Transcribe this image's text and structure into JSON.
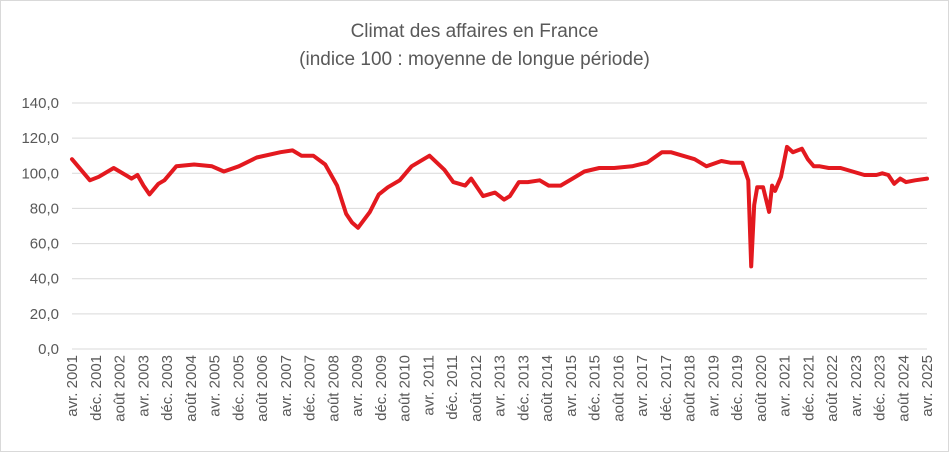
{
  "chart_data": {
    "type": "line",
    "title": "Climat des affaires en France",
    "subtitle": "(indice 100 : moyenne de longue période)",
    "xlabel": "",
    "ylabel": "",
    "ylim": [
      0,
      140
    ],
    "yticks": [
      "0,0",
      "20,0",
      "40,0",
      "60,0",
      "80,0",
      "100,0",
      "120,0",
      "140,0"
    ],
    "x_tick_labels": [
      "avr. 2001",
      "déc. 2001",
      "août 2002",
      "avr. 2003",
      "déc. 2003",
      "août 2004",
      "avr. 2005",
      "déc. 2005",
      "août 2006",
      "avr. 2007",
      "déc. 2007",
      "août 2008",
      "avr. 2009",
      "déc. 2009",
      "août 2010",
      "avr. 2011",
      "déc. 2011",
      "août 2012",
      "avr. 2013",
      "déc. 2013",
      "août 2014",
      "avr. 2015",
      "déc. 2015",
      "août 2016",
      "avr. 2017",
      "déc. 2017",
      "août 2018",
      "avr. 2019",
      "déc. 2019",
      "août 2020",
      "avr. 2021",
      "déc. 2021",
      "août 2022",
      "avr. 2023",
      "déc. 2023",
      "août 2024",
      "avr. 2025"
    ],
    "grid": true,
    "legend": "none",
    "series": [
      {
        "color": "#e3191f",
        "x": [
          "2001-04",
          "2001-10",
          "2002-01",
          "2002-06",
          "2002-12",
          "2003-02",
          "2003-04",
          "2003-06",
          "2003-09",
          "2003-11",
          "2004-03",
          "2004-09",
          "2005-03",
          "2005-07",
          "2005-12",
          "2006-06",
          "2007-02",
          "2007-06",
          "2007-09",
          "2008-01",
          "2008-05",
          "2008-09",
          "2008-12",
          "2009-02",
          "2009-04",
          "2009-08",
          "2009-11",
          "2010-02",
          "2010-06",
          "2010-10",
          "2011-04",
          "2011-09",
          "2011-12",
          "2012-04",
          "2012-06",
          "2012-10",
          "2013-02",
          "2013-05",
          "2013-07",
          "2013-10",
          "2014-01",
          "2014-05",
          "2014-08",
          "2014-12",
          "2015-04",
          "2015-08",
          "2016-01",
          "2016-06",
          "2016-12",
          "2017-05",
          "2017-10",
          "2018-01",
          "2018-05",
          "2018-09",
          "2019-01",
          "2019-06",
          "2019-09",
          "2020-01",
          "2020-03",
          "2020-04",
          "2020-05",
          "2020-06",
          "2020-08",
          "2020-10",
          "2020-11",
          "2020-12",
          "2021-02",
          "2021-04",
          "2021-06",
          "2021-09",
          "2021-11",
          "2022-01",
          "2022-03",
          "2022-06",
          "2022-10",
          "2023-02",
          "2023-06",
          "2023-10",
          "2023-12",
          "2024-02",
          "2024-04",
          "2024-06",
          "2024-08",
          "2024-11",
          "2025-03"
        ],
        "y": [
          108,
          96,
          98,
          103,
          97,
          99,
          93,
          88,
          94,
          96,
          104,
          105,
          104,
          101,
          104,
          109,
          112,
          113,
          110,
          110,
          105,
          93,
          77,
          72,
          69,
          78,
          88,
          92,
          96,
          104,
          110,
          102,
          95,
          93,
          97,
          87,
          89,
          85,
          87,
          95,
          95,
          96,
          93,
          93,
          97,
          101,
          103,
          103,
          104,
          106,
          112,
          112,
          110,
          108,
          104,
          107,
          106,
          106,
          96,
          47,
          82,
          92,
          92,
          78,
          93,
          90,
          98,
          115,
          112,
          114,
          108,
          104,
          104,
          103,
          103,
          101,
          99,
          99,
          100,
          99,
          94,
          97,
          95,
          96,
          97
        ]
      }
    ]
  }
}
